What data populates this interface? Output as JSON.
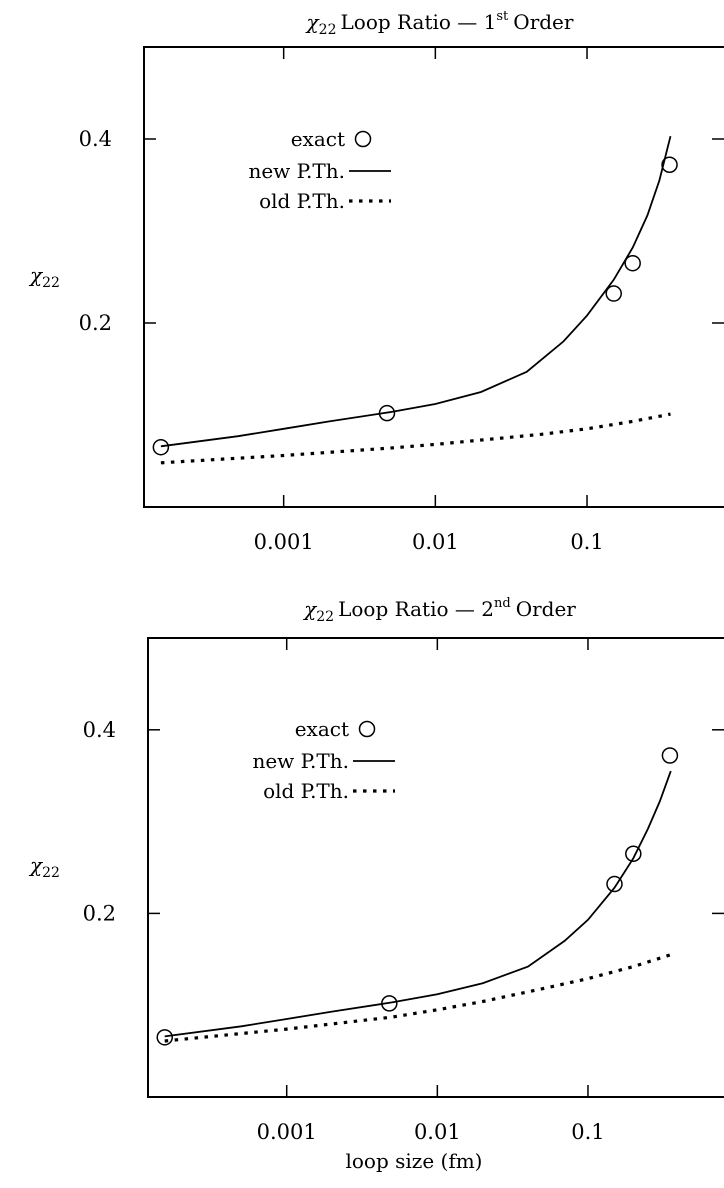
{
  "chart_data": [
    {
      "type": "line",
      "title": {
        "symbol": "χ",
        "symbol_sub": "22",
        "text": "Loop Ratio — 1",
        "order_sup": "st",
        "suffix": "Order"
      },
      "ylabel": {
        "symbol": "χ",
        "symbol_sub": "22"
      },
      "xlabel": "",
      "xscale": "log",
      "xlim": [
        0.00012,
        0.8
      ],
      "ylim": [
        0.0,
        0.5
      ],
      "xticks": [
        {
          "value": 0.001,
          "label": "0.001"
        },
        {
          "value": 0.01,
          "label": "0.01"
        },
        {
          "value": 0.1,
          "label": "0.1"
        }
      ],
      "yticks": [
        {
          "value": 0.2,
          "label": "0.2"
        },
        {
          "value": 0.4,
          "label": "0.4"
        }
      ],
      "grid": false,
      "legend_position": "top-left",
      "series": [
        {
          "name": "exact",
          "style": "circles",
          "x": [
            0.000155,
            0.0048,
            0.15,
            0.2,
            0.35
          ],
          "y": [
            0.065,
            0.102,
            0.232,
            0.265,
            0.372
          ]
        },
        {
          "name": "new P.Th.",
          "style": "solid",
          "x": [
            0.000155,
            0.0005,
            0.001,
            0.002,
            0.005,
            0.01,
            0.02,
            0.04,
            0.07,
            0.1,
            0.15,
            0.2,
            0.25,
            0.3,
            0.355
          ],
          "y": [
            0.066,
            0.077,
            0.085,
            0.093,
            0.103,
            0.112,
            0.125,
            0.147,
            0.18,
            0.208,
            0.247,
            0.282,
            0.317,
            0.355,
            0.403
          ]
        },
        {
          "name": "old P.Th.",
          "style": "dotted",
          "x": [
            0.000155,
            0.001,
            0.005,
            0.01,
            0.05,
            0.1,
            0.2,
            0.355
          ],
          "y": [
            0.048,
            0.056,
            0.064,
            0.068,
            0.079,
            0.085,
            0.093,
            0.101
          ]
        }
      ]
    },
    {
      "type": "line",
      "title": {
        "symbol": "χ",
        "symbol_sub": "22",
        "text": "Loop Ratio — 2",
        "order_sup": "nd",
        "suffix": "Order"
      },
      "ylabel": {
        "symbol": "χ",
        "symbol_sub": "22"
      },
      "xlabel": "loop size (fm)",
      "xscale": "log",
      "xlim": [
        0.00012,
        0.8
      ],
      "ylim": [
        0.0,
        0.5
      ],
      "xticks": [
        {
          "value": 0.001,
          "label": "0.001"
        },
        {
          "value": 0.01,
          "label": "0.01"
        },
        {
          "value": 0.1,
          "label": "0.1"
        }
      ],
      "yticks": [
        {
          "value": 0.2,
          "label": "0.2"
        },
        {
          "value": 0.4,
          "label": "0.4"
        }
      ],
      "grid": false,
      "legend_position": "top-left",
      "series": [
        {
          "name": "exact",
          "style": "circles",
          "x": [
            0.000155,
            0.0048,
            0.15,
            0.2,
            0.35
          ],
          "y": [
            0.065,
            0.102,
            0.232,
            0.265,
            0.372
          ]
        },
        {
          "name": "new P.Th.",
          "style": "solid",
          "x": [
            0.000155,
            0.0005,
            0.001,
            0.002,
            0.005,
            0.01,
            0.02,
            0.04,
            0.07,
            0.1,
            0.15,
            0.2,
            0.25,
            0.3,
            0.355
          ],
          "y": [
            0.066,
            0.077,
            0.085,
            0.093,
            0.103,
            0.112,
            0.124,
            0.142,
            0.17,
            0.193,
            0.228,
            0.26,
            0.292,
            0.322,
            0.355
          ]
        },
        {
          "name": "old P.Th.",
          "style": "dotted",
          "x": [
            0.000155,
            0.001,
            0.005,
            0.01,
            0.02,
            0.05,
            0.1,
            0.2,
            0.355
          ],
          "y": [
            0.061,
            0.074,
            0.087,
            0.095,
            0.104,
            0.118,
            0.129,
            0.142,
            0.155
          ]
        }
      ]
    }
  ]
}
